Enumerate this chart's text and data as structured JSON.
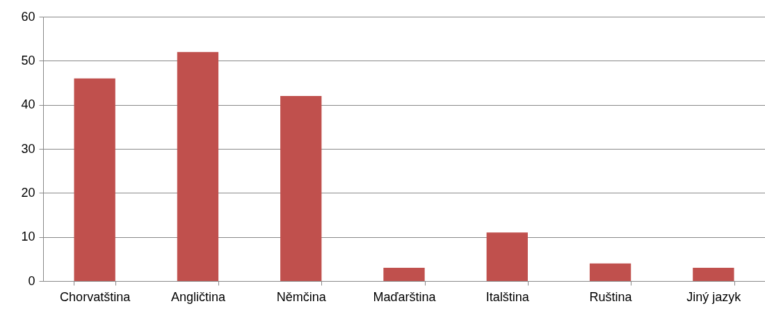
{
  "chart_data": {
    "type": "bar",
    "categories": [
      "Chorvatština",
      "Angličtina",
      "Němčina",
      "Maďarština",
      "Italština",
      "Ruština",
      "Jiný jazyk"
    ],
    "values": [
      46,
      52,
      42,
      3,
      11,
      4,
      3
    ],
    "color": "#c0504d",
    "ylim": [
      0,
      60
    ],
    "yticks": [
      0,
      10,
      20,
      30,
      40,
      50,
      60
    ],
    "grid": "y"
  }
}
